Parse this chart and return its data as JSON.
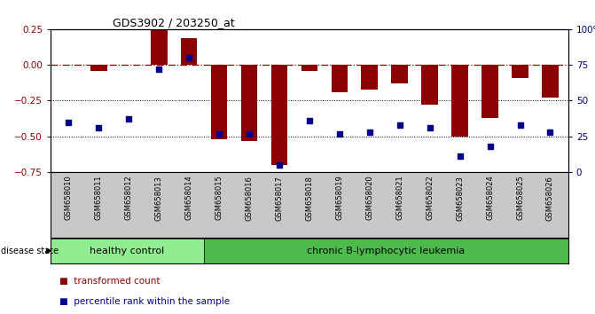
{
  "title": "GDS3902 / 203250_at",
  "samples": [
    "GSM658010",
    "GSM658011",
    "GSM658012",
    "GSM658013",
    "GSM658014",
    "GSM658015",
    "GSM658016",
    "GSM658017",
    "GSM658018",
    "GSM658019",
    "GSM658020",
    "GSM658021",
    "GSM658022",
    "GSM658023",
    "GSM658024",
    "GSM658025",
    "GSM658026"
  ],
  "bar_values": [
    0.0,
    -0.04,
    0.0,
    0.27,
    0.19,
    -0.52,
    -0.53,
    -0.7,
    -0.04,
    -0.19,
    -0.17,
    -0.13,
    -0.28,
    -0.5,
    -0.37,
    -0.09,
    -0.23
  ],
  "percentile_values": [
    35,
    31,
    37,
    72,
    80,
    27,
    27,
    5,
    36,
    27,
    28,
    33,
    31,
    11,
    18,
    33,
    28
  ],
  "healthy_count": 5,
  "disease_count": 12,
  "bar_color": "#8B0000",
  "percentile_color": "#00008B",
  "ylim_left": [
    -0.75,
    0.25
  ],
  "ylim_right": [
    0,
    100
  ],
  "yticks_left": [
    -0.75,
    -0.5,
    -0.25,
    0.0,
    0.25
  ],
  "yticks_right": [
    0,
    25,
    50,
    75,
    100
  ],
  "ytick_labels_right": [
    "0",
    "25",
    "50",
    "75",
    "100%"
  ],
  "dotted_lines": [
    -0.25,
    -0.5
  ],
  "group1_label": "healthy control",
  "group2_label": "chronic B-lymphocytic leukemia",
  "disease_state_label": "disease state",
  "legend_bar_label": "transformed count",
  "legend_pct_label": "percentile rank within the sample",
  "group1_color": "#90EE90",
  "group2_color": "#4CBB4C",
  "xlabel_area_color": "#C8C8C8"
}
